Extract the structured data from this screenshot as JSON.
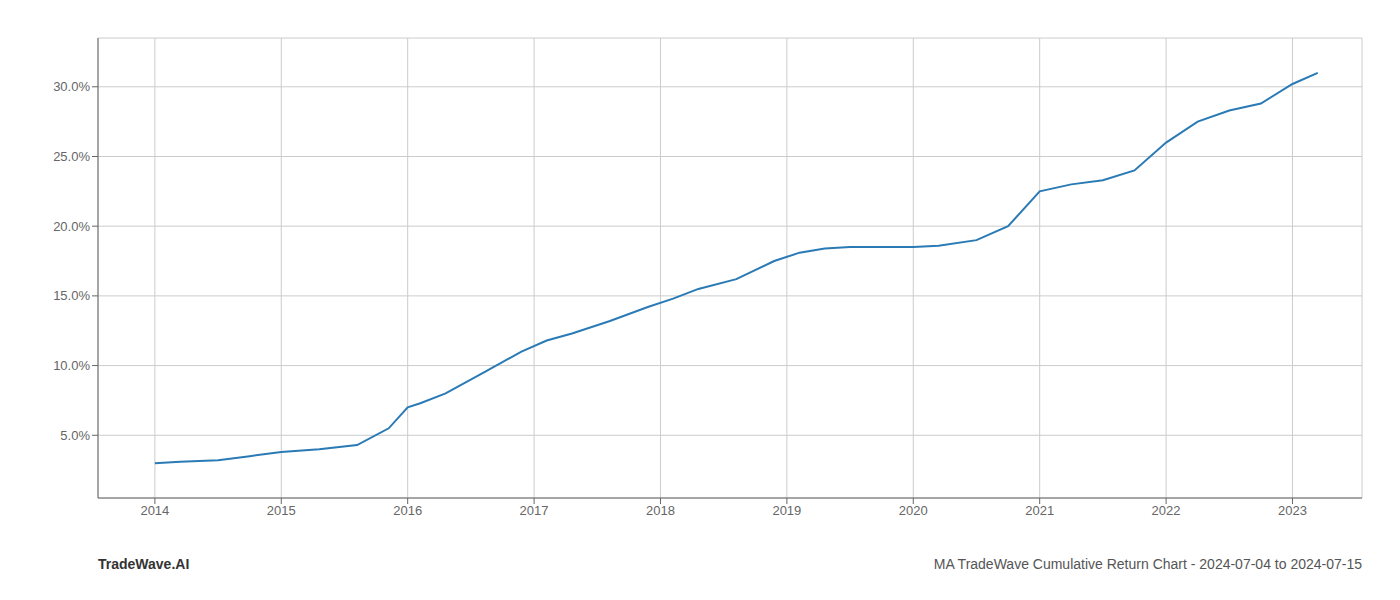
{
  "chart_data": {
    "type": "line",
    "title": "MA TradeWave Cumulative Return Chart - 2024-07-04 to 2024-07-15",
    "annotations": [
      "TradeWave.AI"
    ],
    "x": [
      2014.0,
      2014.2,
      2014.5,
      2014.75,
      2015.0,
      2015.3,
      2015.6,
      2015.85,
      2016.0,
      2016.1,
      2016.3,
      2016.6,
      2016.9,
      2017.1,
      2017.3,
      2017.6,
      2017.9,
      2018.1,
      2018.3,
      2018.6,
      2018.9,
      2019.1,
      2019.3,
      2019.5,
      2019.7,
      2019.85,
      2020.0,
      2020.2,
      2020.5,
      2020.75,
      2021.0,
      2021.25,
      2021.5,
      2021.75,
      2022.0,
      2022.25,
      2022.5,
      2022.75,
      2023.0,
      2023.2
    ],
    "values": [
      3.0,
      3.1,
      3.2,
      3.5,
      3.8,
      4.0,
      4.3,
      5.5,
      7.0,
      7.3,
      8.0,
      9.5,
      11.0,
      11.8,
      12.3,
      13.2,
      14.2,
      14.8,
      15.5,
      16.2,
      17.5,
      18.1,
      18.4,
      18.5,
      18.5,
      18.5,
      18.5,
      18.6,
      19.0,
      20.0,
      22.5,
      23.0,
      23.3,
      24.0,
      26.0,
      27.5,
      28.3,
      28.8,
      30.2,
      31.0
    ],
    "color": "#2a7ab5",
    "xlim": [
      2013.55,
      2023.55
    ],
    "ylim": [
      0.5,
      33.5
    ],
    "xticks": [
      2014,
      2015,
      2016,
      2017,
      2018,
      2019,
      2020,
      2021,
      2022,
      2023
    ],
    "yticks": [
      {
        "value": 5.0,
        "label": "5.0%"
      },
      {
        "value": 10.0,
        "label": "10.0%"
      },
      {
        "value": 15.0,
        "label": "15.0%"
      },
      {
        "value": 20.0,
        "label": "20.0%"
      },
      {
        "value": 25.0,
        "label": "25.0%"
      },
      {
        "value": 30.0,
        "label": "30.0%"
      }
    ],
    "grid": true
  }
}
